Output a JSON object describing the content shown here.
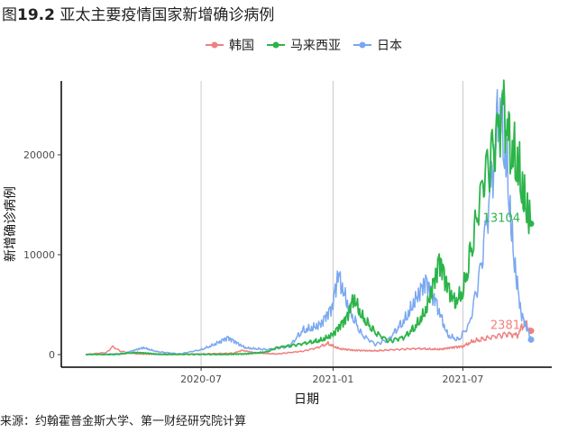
{
  "title_prefix": "图",
  "title_number": "19.2",
  "title_text": "亚太主要疫情国家新增确诊病例",
  "source": "来源：约翰霍普金斯大学、第一财经研究院计算",
  "chart_data": {
    "type": "line",
    "xlabel": "日期",
    "ylabel": "新增确诊病例",
    "x_range": [
      "2020-01-22",
      "2021-10-04"
    ],
    "ylim": [
      -1300,
      27000
    ],
    "grid": "vertical lines at x ticks",
    "legend_position": "top",
    "x_ticks": [
      {
        "date": "2020-07-01",
        "label": "2020-07"
      },
      {
        "date": "2021-01-01",
        "label": "2021-01"
      },
      {
        "date": "2021-07-01",
        "label": "2021-07"
      }
    ],
    "y_ticks": [
      0,
      10000,
      20000
    ],
    "series": [
      {
        "name": "韩国",
        "color": "#f08080",
        "end_label": "2381",
        "points": [
          [
            "2020-01-22",
            0
          ],
          [
            "2020-02-20",
            200
          ],
          [
            "2020-02-29",
            800
          ],
          [
            "2020-03-10",
            350
          ],
          [
            "2020-04-01",
            90
          ],
          [
            "2020-05-01",
            10
          ],
          [
            "2020-06-01",
            40
          ],
          [
            "2020-07-01",
            50
          ],
          [
            "2020-08-15",
            150
          ],
          [
            "2020-08-27",
            430
          ],
          [
            "2020-09-15",
            150
          ],
          [
            "2020-10-15",
            80
          ],
          [
            "2020-11-20",
            330
          ],
          [
            "2020-12-10",
            680
          ],
          [
            "2020-12-25",
            1150
          ],
          [
            "2021-01-10",
            600
          ],
          [
            "2021-01-30",
            400
          ],
          [
            "2021-03-01",
            400
          ],
          [
            "2021-04-01",
            500
          ],
          [
            "2021-05-01",
            600
          ],
          [
            "2021-06-01",
            550
          ],
          [
            "2021-07-01",
            800
          ],
          [
            "2021-07-15",
            1400
          ],
          [
            "2021-08-15",
            1800
          ],
          [
            "2021-09-01",
            2000
          ],
          [
            "2021-09-15",
            1900
          ],
          [
            "2021-09-25",
            3270
          ],
          [
            "2021-10-04",
            2381
          ]
        ]
      },
      {
        "name": "马来西亚",
        "color": "#2cb44a",
        "end_label": "13104",
        "points": [
          [
            "2020-01-22",
            0
          ],
          [
            "2020-03-01",
            0
          ],
          [
            "2020-03-20",
            150
          ],
          [
            "2020-04-01",
            200
          ],
          [
            "2020-05-01",
            50
          ],
          [
            "2020-06-01",
            20
          ],
          [
            "2020-07-01",
            10
          ],
          [
            "2020-09-01",
            50
          ],
          [
            "2020-10-01",
            300
          ],
          [
            "2020-10-15",
            700
          ],
          [
            "2020-11-15",
            1000
          ],
          [
            "2020-12-15",
            1500
          ],
          [
            "2021-01-01",
            2000
          ],
          [
            "2021-01-20",
            3500
          ],
          [
            "2021-01-30",
            5700
          ],
          [
            "2021-02-10",
            4000
          ],
          [
            "2021-03-01",
            2200
          ],
          [
            "2021-03-20",
            1300
          ],
          [
            "2021-04-10",
            1700
          ],
          [
            "2021-04-25",
            2800
          ],
          [
            "2021-05-10",
            4500
          ],
          [
            "2021-05-25",
            7800
          ],
          [
            "2021-05-29",
            9000
          ],
          [
            "2021-06-10",
            6500
          ],
          [
            "2021-06-20",
            5300
          ],
          [
            "2021-07-01",
            6500
          ],
          [
            "2021-07-15",
            11500
          ],
          [
            "2021-07-30",
            17500
          ],
          [
            "2021-08-10",
            19500
          ],
          [
            "2021-08-20",
            22000
          ],
          [
            "2021-08-26",
            24500
          ],
          [
            "2021-09-05",
            21000
          ],
          [
            "2021-09-15",
            20000
          ],
          [
            "2021-09-25",
            16000
          ],
          [
            "2021-10-04",
            13104
          ]
        ]
      },
      {
        "name": "日本",
        "color": "#7ba8f0",
        "end_label": "",
        "points": [
          [
            "2020-01-22",
            0
          ],
          [
            "2020-03-15",
            100
          ],
          [
            "2020-04-12",
            700
          ],
          [
            "2020-05-01",
            300
          ],
          [
            "2020-06-01",
            50
          ],
          [
            "2020-07-01",
            500
          ],
          [
            "2020-08-07",
            1600
          ],
          [
            "2020-09-01",
            700
          ],
          [
            "2020-10-01",
            500
          ],
          [
            "2020-11-01",
            800
          ],
          [
            "2020-11-20",
            2500
          ],
          [
            "2020-12-15",
            3000
          ],
          [
            "2020-12-31",
            4500
          ],
          [
            "2021-01-08",
            7900
          ],
          [
            "2021-01-25",
            4500
          ],
          [
            "2021-02-10",
            2000
          ],
          [
            "2021-03-01",
            1000
          ],
          [
            "2021-03-20",
            1500
          ],
          [
            "2021-04-10",
            3500
          ],
          [
            "2021-04-25",
            5500
          ],
          [
            "2021-05-10",
            7000
          ],
          [
            "2021-05-25",
            5000
          ],
          [
            "2021-06-10",
            2000
          ],
          [
            "2021-06-25",
            1500
          ],
          [
            "2021-07-10",
            3000
          ],
          [
            "2021-07-25",
            8000
          ],
          [
            "2021-08-05",
            14000
          ],
          [
            "2021-08-15",
            20000
          ],
          [
            "2021-08-20",
            25900
          ],
          [
            "2021-08-31",
            20000
          ],
          [
            "2021-09-10",
            10000
          ],
          [
            "2021-09-20",
            4000
          ],
          [
            "2021-10-04",
            1500
          ]
        ]
      }
    ]
  }
}
